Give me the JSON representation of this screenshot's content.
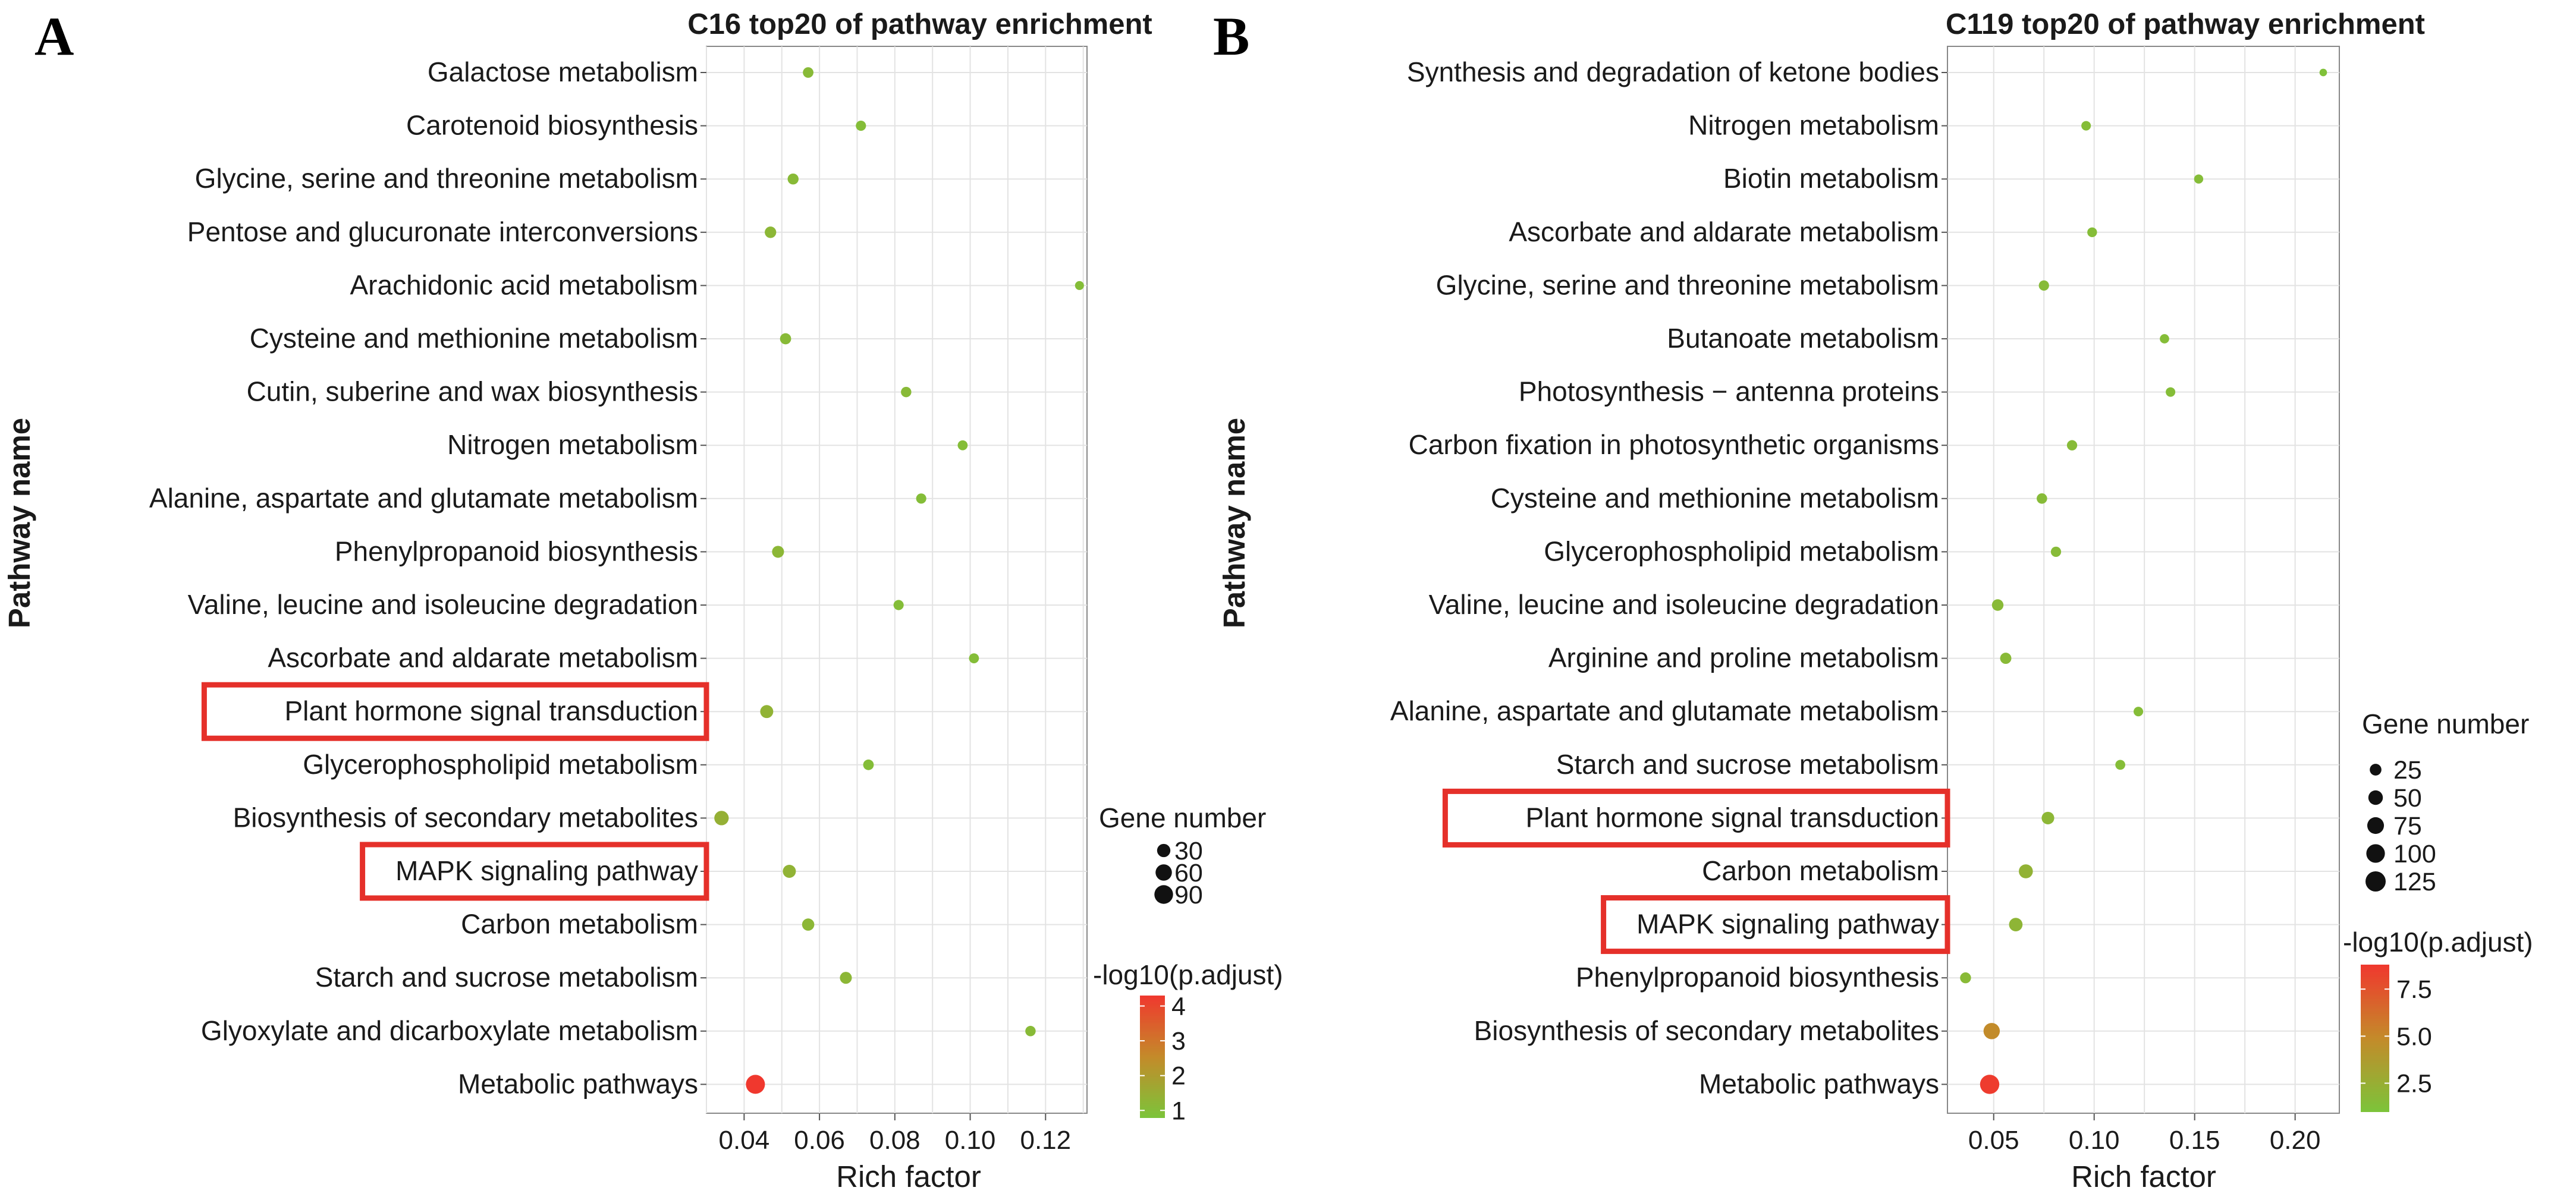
{
  "figure": {
    "y_axis_title": "Pathway name",
    "x_axis_title": "Rich factor",
    "size_legend_title": "Gene number",
    "color_legend_title": "-log10(p.adjust)"
  },
  "chart_data": [
    {
      "type": "scatter",
      "panel": "A",
      "title": "C16 top20 of pathway enrichment",
      "xlabel": "Rich factor",
      "ylabel": "Pathway name",
      "xlim": [
        0.03,
        0.131
      ],
      "xticks": [
        0.04,
        0.06,
        0.08,
        0.1,
        0.12
      ],
      "xtick_labels": [
        "0.04",
        "0.06",
        "0.08",
        "0.10",
        "0.12"
      ],
      "grid": true,
      "highlighted": [
        "Plant hormone signal transduction",
        "MAPK signaling pathway"
      ],
      "size_legend": {
        "title": "Gene number",
        "values": [
          30,
          60,
          90
        ],
        "labels": [
          "30",
          "60",
          "90"
        ]
      },
      "color_legend": {
        "title": "-log10(p.adjust)",
        "min": 0.8,
        "max": 4.3,
        "ticks": [
          4,
          3,
          2,
          1
        ],
        "labels": [
          "4",
          "3",
          "2",
          "1"
        ]
      },
      "points": [
        {
          "pathway": "Galactose metabolism",
          "rich_factor": 0.057,
          "gene_number": 12,
          "neg_log10_padj": 1.1
        },
        {
          "pathway": "Carotenoid biosynthesis",
          "rich_factor": 0.071,
          "gene_number": 10,
          "neg_log10_padj": 1.0
        },
        {
          "pathway": "Glycine, serine and threonine metabolism",
          "rich_factor": 0.053,
          "gene_number": 14,
          "neg_log10_padj": 1.1
        },
        {
          "pathway": "Pentose and glucuronate interconversions",
          "rich_factor": 0.047,
          "gene_number": 17,
          "neg_log10_padj": 1.2
        },
        {
          "pathway": "Arachidonic acid metabolism",
          "rich_factor": 0.129,
          "gene_number": 5,
          "neg_log10_padj": 1.0
        },
        {
          "pathway": "Cysteine and methionine metabolism",
          "rich_factor": 0.051,
          "gene_number": 15,
          "neg_log10_padj": 1.1
        },
        {
          "pathway": "Cutin, suberine and wax biosynthesis",
          "rich_factor": 0.083,
          "gene_number": 11,
          "neg_log10_padj": 1.1
        },
        {
          "pathway": "Nitrogen metabolism",
          "rich_factor": 0.098,
          "gene_number": 9,
          "neg_log10_padj": 1.0
        },
        {
          "pathway": "Alanine, aspartate and glutamate metabolism",
          "rich_factor": 0.087,
          "gene_number": 10,
          "neg_log10_padj": 1.0
        },
        {
          "pathway": "Phenylpropanoid biosynthesis",
          "rich_factor": 0.049,
          "gene_number": 20,
          "neg_log10_padj": 1.2
        },
        {
          "pathway": "Valine, leucine and isoleucine degradation",
          "rich_factor": 0.081,
          "gene_number": 10,
          "neg_log10_padj": 1.0
        },
        {
          "pathway": "Ascorbate and aldarate metabolism",
          "rich_factor": 0.101,
          "gene_number": 9,
          "neg_log10_padj": 1.0
        },
        {
          "pathway": "Plant hormone signal transduction",
          "rich_factor": 0.046,
          "gene_number": 28,
          "neg_log10_padj": 1.3
        },
        {
          "pathway": "Glycerophospholipid metabolism",
          "rich_factor": 0.073,
          "gene_number": 12,
          "neg_log10_padj": 1.0
        },
        {
          "pathway": "Biosynthesis of secondary metabolites",
          "rich_factor": 0.034,
          "gene_number": 40,
          "neg_log10_padj": 1.4
        },
        {
          "pathway": "MAPK signaling pathway",
          "rich_factor": 0.052,
          "gene_number": 28,
          "neg_log10_padj": 1.3
        },
        {
          "pathway": "Carbon metabolism",
          "rich_factor": 0.057,
          "gene_number": 22,
          "neg_log10_padj": 1.2
        },
        {
          "pathway": "Starch and sucrose metabolism",
          "rich_factor": 0.067,
          "gene_number": 20,
          "neg_log10_padj": 1.2
        },
        {
          "pathway": "Glyoxylate and dicarboxylate metabolism",
          "rich_factor": 0.116,
          "gene_number": 11,
          "neg_log10_padj": 1.1
        },
        {
          "pathway": "Metabolic pathways",
          "rich_factor": 0.043,
          "gene_number": 95,
          "neg_log10_padj": 4.3
        }
      ]
    },
    {
      "type": "scatter",
      "panel": "B",
      "title": "C119 top20 of pathway enrichment",
      "xlabel": "Rich factor",
      "ylabel": "Pathway name",
      "xlim": [
        0.027,
        0.222
      ],
      "xticks": [
        0.05,
        0.1,
        0.15,
        0.2
      ],
      "xtick_labels": [
        "0.05",
        "0.10",
        "0.15",
        "0.20"
      ],
      "grid": true,
      "highlighted": [
        "Plant hormone signal transduction",
        "MAPK signaling pathway"
      ],
      "size_legend": {
        "title": "Gene number",
        "values": [
          25,
          50,
          75,
          100,
          125
        ],
        "labels": [
          "25",
          "50",
          "75",
          "100",
          "125"
        ]
      },
      "color_legend": {
        "title": "-log10(p.adjust)",
        "min": 1.0,
        "max": 8.8,
        "ticks": [
          7.5,
          5.0,
          2.5
        ],
        "labels": [
          "7.5",
          "5.0",
          "2.5"
        ]
      },
      "points": [
        {
          "pathway": "Synthesis and degradation of ketone bodies",
          "rich_factor": 0.214,
          "gene_number": 4,
          "neg_log10_padj": 1.2
        },
        {
          "pathway": "Nitrogen metabolism",
          "rich_factor": 0.096,
          "gene_number": 12,
          "neg_log10_padj": 1.5
        },
        {
          "pathway": "Biotin metabolism",
          "rich_factor": 0.152,
          "gene_number": 10,
          "neg_log10_padj": 1.5
        },
        {
          "pathway": "Ascorbate and aldarate metabolism",
          "rich_factor": 0.099,
          "gene_number": 13,
          "neg_log10_padj": 1.5
        },
        {
          "pathway": "Glycine, serine and threonine metabolism",
          "rich_factor": 0.075,
          "gene_number": 16,
          "neg_log10_padj": 1.6
        },
        {
          "pathway": "Butanoate metabolism",
          "rich_factor": 0.135,
          "gene_number": 11,
          "neg_log10_padj": 1.5
        },
        {
          "pathway": "Photosynthesis − antenna proteins",
          "rich_factor": 0.138,
          "gene_number": 12,
          "neg_log10_padj": 1.5
        },
        {
          "pathway": "Carbon fixation in photosynthetic organisms",
          "rich_factor": 0.089,
          "gene_number": 16,
          "neg_log10_padj": 1.6
        },
        {
          "pathway": "Cysteine and methionine metabolism",
          "rich_factor": 0.074,
          "gene_number": 17,
          "neg_log10_padj": 1.6
        },
        {
          "pathway": "Glycerophospholipid metabolism",
          "rich_factor": 0.081,
          "gene_number": 16,
          "neg_log10_padj": 1.6
        },
        {
          "pathway": "Valine, leucine and isoleucine degradation",
          "rich_factor": 0.052,
          "gene_number": 24,
          "neg_log10_padj": 1.7
        },
        {
          "pathway": "Arginine and proline metabolism",
          "rich_factor": 0.056,
          "gene_number": 22,
          "neg_log10_padj": 1.7
        },
        {
          "pathway": "Alanine, aspartate and glutamate metabolism",
          "rich_factor": 0.122,
          "gene_number": 12,
          "neg_log10_padj": 1.5
        },
        {
          "pathway": "Starch and sucrose metabolism",
          "rich_factor": 0.113,
          "gene_number": 14,
          "neg_log10_padj": 1.5
        },
        {
          "pathway": "Plant hormone signal transduction",
          "rich_factor": 0.077,
          "gene_number": 32,
          "neg_log10_padj": 1.9
        },
        {
          "pathway": "Carbon metabolism",
          "rich_factor": 0.066,
          "gene_number": 45,
          "neg_log10_padj": 2.2
        },
        {
          "pathway": "MAPK signaling pathway",
          "rich_factor": 0.061,
          "gene_number": 40,
          "neg_log10_padj": 2.0
        },
        {
          "pathway": "Phenylpropanoid biosynthesis",
          "rich_factor": 0.036,
          "gene_number": 20,
          "neg_log10_padj": 1.7
        },
        {
          "pathway": "Biosynthesis of secondary metabolites",
          "rich_factor": 0.049,
          "gene_number": 70,
          "neg_log10_padj": 4.8
        },
        {
          "pathway": "Metabolic pathways",
          "rich_factor": 0.048,
          "gene_number": 110,
          "neg_log10_padj": 8.6
        }
      ]
    }
  ]
}
